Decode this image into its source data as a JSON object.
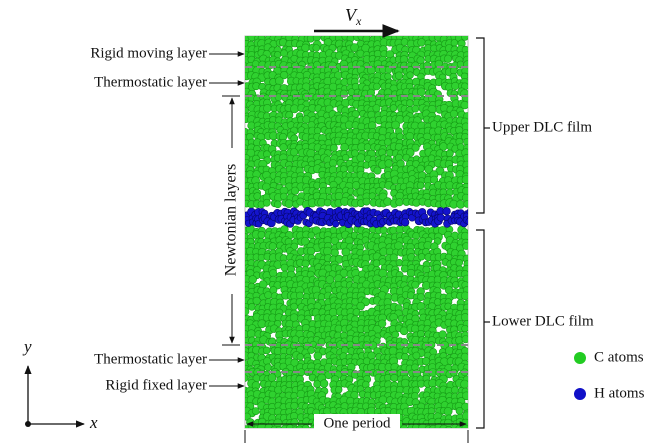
{
  "velocity": {
    "symbol": "V",
    "subscript": "x"
  },
  "left_labels": {
    "rigid_moving": "Rigid moving layer",
    "thermostatic_top": "Thermostatic layer",
    "newtonian": "Newtonian layers",
    "thermostatic_bottom": "Thermostatic layer",
    "rigid_fixed": "Rigid fixed layer"
  },
  "right_labels": {
    "upper": "Upper DLC film",
    "lower": "Lower DLC film"
  },
  "legend": {
    "c_atoms": "C atoms",
    "h_atoms": "H atoms"
  },
  "bottom_label": "One period",
  "axes": {
    "y": "y",
    "x": "x"
  }
}
